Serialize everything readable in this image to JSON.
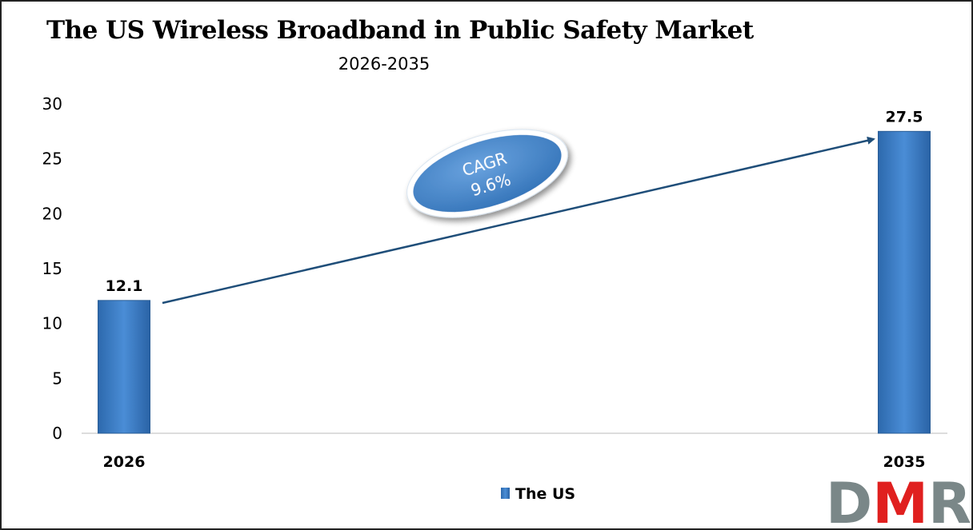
{
  "chart_data": {
    "type": "bar",
    "title": "The US Wireless Broadband in Public Safety Market",
    "subtitle": "2026-2035",
    "categories": [
      "2026",
      "2035"
    ],
    "series": [
      {
        "name": "The US",
        "values": [
          12.1,
          27.5
        ],
        "color": "#3a7cc4"
      }
    ],
    "data_labels": [
      "12.1",
      "27.5"
    ],
    "ylim": [
      0,
      30
    ],
    "yticks": [
      0,
      5,
      10,
      15,
      20,
      25,
      30
    ],
    "grid": false,
    "legend": "bottom",
    "annotation": {
      "line1": "CAGR",
      "line2": "9.6%"
    }
  },
  "logo": {
    "text": "DMR",
    "colors": [
      "#7a8788",
      "#e0201f",
      "#7a8788"
    ]
  }
}
